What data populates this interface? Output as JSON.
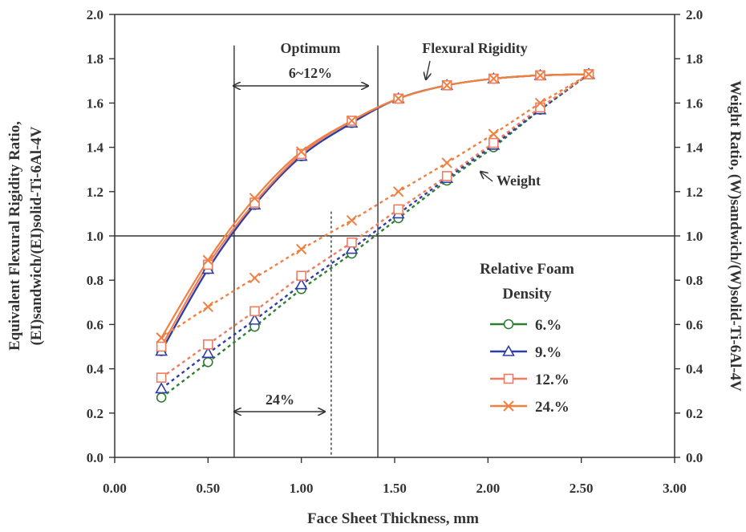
{
  "chart_data": {
    "type": "line",
    "xlabel": "Face Sheet Thickness, mm",
    "ylabel_left_line1": "Equivalent Flexural Rigidity Ratio,",
    "ylabel_left_line2": "(EI)sandwich/(EI)solid-Ti-6Al-4V",
    "ylabel_right": "Weight Ratio, (W)sandwich/(W)solid-Ti-6Al-4V",
    "xlim": [
      0,
      3
    ],
    "ylim": [
      0,
      2
    ],
    "x_ticks": [
      "0.00",
      "0.50",
      "1.00",
      "1.50",
      "2.00",
      "2.50",
      "3.00"
    ],
    "y_ticks": [
      "0.0",
      "0.2",
      "0.4",
      "0.6",
      "0.8",
      "1.0",
      "1.2",
      "1.4",
      "1.6",
      "1.8",
      "2.0"
    ],
    "grid": false,
    "reference_lines": {
      "horizontal_y": 1.0,
      "vertical_solid_x": [
        0.64,
        1.41
      ],
      "vertical_dashed_x": 1.16
    },
    "annotations": {
      "optimum": "Optimum",
      "optimum_range": "6~12%",
      "flexural_rigidity": "Flexural Rigidity",
      "weight": "Weight",
      "range_24": "24%"
    },
    "legend_title_line1": "Relative Foam",
    "legend_title_line2": "Density",
    "series": [
      {
        "name": "6.%",
        "marker": "circle",
        "color": "#2e7d32",
        "x": [
          0.25,
          0.5,
          0.75,
          1.0,
          1.27,
          1.52,
          1.78,
          2.03,
          2.28,
          2.54
        ],
        "rigidity": [
          0.48,
          0.85,
          1.14,
          1.36,
          1.51,
          1.62,
          1.68,
          1.71,
          1.725,
          1.73
        ],
        "weight": [
          0.27,
          0.43,
          0.59,
          0.76,
          0.92,
          1.08,
          1.25,
          1.4,
          1.57,
          1.73
        ]
      },
      {
        "name": "9.%",
        "marker": "triangle",
        "color": "#2f3da8",
        "x": [
          0.25,
          0.5,
          0.75,
          1.0,
          1.27,
          1.52,
          1.78,
          2.03,
          2.28,
          2.54
        ],
        "rigidity": [
          0.48,
          0.85,
          1.14,
          1.36,
          1.51,
          1.62,
          1.68,
          1.71,
          1.725,
          1.73
        ],
        "weight": [
          0.31,
          0.47,
          0.62,
          0.78,
          0.94,
          1.1,
          1.26,
          1.41,
          1.57,
          1.73
        ]
      },
      {
        "name": "12.%",
        "marker": "square",
        "color": "#f07c60",
        "x": [
          0.25,
          0.5,
          0.75,
          1.0,
          1.27,
          1.52,
          1.78,
          2.03,
          2.28,
          2.54
        ],
        "rigidity": [
          0.5,
          0.87,
          1.15,
          1.37,
          1.52,
          1.62,
          1.68,
          1.71,
          1.725,
          1.73
        ],
        "weight": [
          0.36,
          0.51,
          0.66,
          0.82,
          0.97,
          1.12,
          1.27,
          1.42,
          1.58,
          1.73
        ]
      },
      {
        "name": "24.%",
        "marker": "x",
        "color": "#f08040",
        "x": [
          0.25,
          0.5,
          0.75,
          1.0,
          1.27,
          1.52,
          1.78,
          2.03,
          2.28,
          2.54
        ],
        "rigidity": [
          0.54,
          0.89,
          1.17,
          1.38,
          1.52,
          1.62,
          1.68,
          1.71,
          1.725,
          1.73
        ],
        "weight": [
          0.54,
          0.68,
          0.81,
          0.94,
          1.07,
          1.2,
          1.33,
          1.46,
          1.6,
          1.73
        ]
      }
    ]
  }
}
